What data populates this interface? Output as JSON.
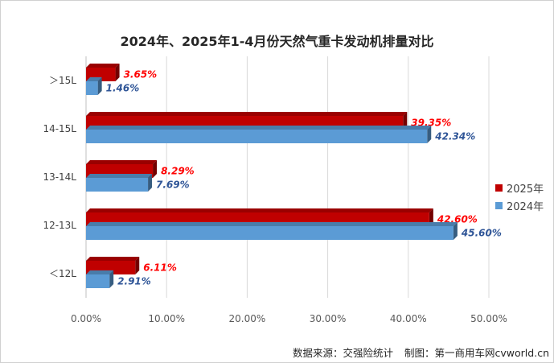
{
  "chart_data": {
    "type": "bar",
    "orientation": "horizontal",
    "title": "2024年、2025年1-4月份天然气重卡发动机排量对比",
    "categories": [
      "＞15L",
      "14-15L",
      "13-14L",
      "12-13L",
      "＜12L"
    ],
    "series": [
      {
        "name": "2025年",
        "color": "#c00000",
        "label_color": "#ff0000",
        "values": [
          3.65,
          39.35,
          8.29,
          42.6,
          6.11
        ],
        "labels": [
          "3.65%",
          "39.35%",
          "8.29%",
          "42.60%",
          "6.11%"
        ]
      },
      {
        "name": "2024年",
        "color": "#5b9bd5",
        "label_color": "#2f5597",
        "values": [
          1.46,
          42.34,
          7.69,
          45.6,
          2.91
        ],
        "labels": [
          "1.46%",
          "42.34%",
          "7.69%",
          "45.60%",
          "2.91%"
        ]
      }
    ],
    "x_ticks": [
      "0.00%",
      "10.00%",
      "20.00%",
      "30.00%",
      "40.00%",
      "50.00%"
    ],
    "xlim": [
      0,
      50
    ],
    "grid": true,
    "legend_position": "right"
  },
  "footer": {
    "source": "数据来源：交强险统计",
    "maker": "制图：第一商用车网",
    "site": "cvworld.cn"
  }
}
